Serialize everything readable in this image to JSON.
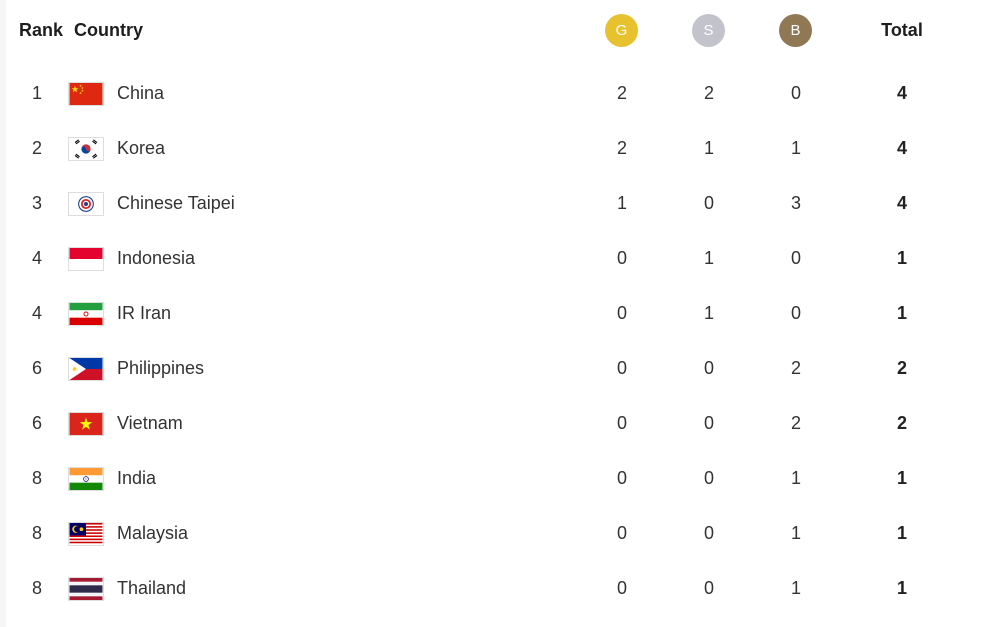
{
  "header": {
    "rank": "Rank",
    "country": "Country",
    "gold": "G",
    "silver": "S",
    "bronze": "B",
    "total": "Total"
  },
  "colors": {
    "gold": "#e8c22e",
    "silver": "#c3c3cc",
    "bronze": "#8f7853"
  },
  "rows": [
    {
      "rank": "1",
      "country": "China",
      "flag": "china-flag-icon",
      "gold": "2",
      "silver": "2",
      "bronze": "0",
      "total": "4"
    },
    {
      "rank": "2",
      "country": "Korea",
      "flag": "korea-flag-icon",
      "gold": "2",
      "silver": "1",
      "bronze": "1",
      "total": "4"
    },
    {
      "rank": "3",
      "country": "Chinese Taipei",
      "flag": "chinese-taipei-flag-icon",
      "gold": "1",
      "silver": "0",
      "bronze": "3",
      "total": "4"
    },
    {
      "rank": "4",
      "country": "Indonesia",
      "flag": "indonesia-flag-icon",
      "gold": "0",
      "silver": "1",
      "bronze": "0",
      "total": "1"
    },
    {
      "rank": "4",
      "country": "IR Iran",
      "flag": "iran-flag-icon",
      "gold": "0",
      "silver": "1",
      "bronze": "0",
      "total": "1"
    },
    {
      "rank": "6",
      "country": "Philippines",
      "flag": "philippines-flag-icon",
      "gold": "0",
      "silver": "0",
      "bronze": "2",
      "total": "2"
    },
    {
      "rank": "6",
      "country": "Vietnam",
      "flag": "vietnam-flag-icon",
      "gold": "0",
      "silver": "0",
      "bronze": "2",
      "total": "2"
    },
    {
      "rank": "8",
      "country": "India",
      "flag": "india-flag-icon",
      "gold": "0",
      "silver": "0",
      "bronze": "1",
      "total": "1"
    },
    {
      "rank": "8",
      "country": "Malaysia",
      "flag": "malaysia-flag-icon",
      "gold": "0",
      "silver": "0",
      "bronze": "1",
      "total": "1"
    },
    {
      "rank": "8",
      "country": "Thailand",
      "flag": "thailand-flag-icon",
      "gold": "0",
      "silver": "0",
      "bronze": "1",
      "total": "1"
    }
  ]
}
